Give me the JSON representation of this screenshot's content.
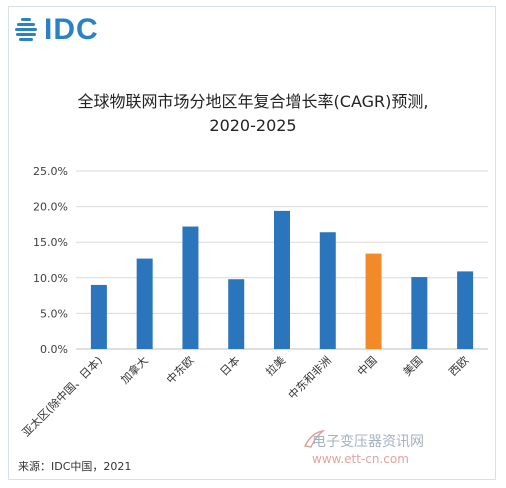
{
  "brand": {
    "logo_text": "IDC",
    "colors": {
      "logo": "#2a82c6",
      "bar": "#2a75bb",
      "highlight": "#f28a2a"
    }
  },
  "footer": {
    "source": "来源：IDC中国，2021"
  },
  "watermark": {
    "site_name": "电子变压器资讯网",
    "url": "www.ett-cn.com"
  },
  "chart_data": {
    "type": "bar",
    "title": "全球物联网市场分地区年复合增长率(CAGR)预测,",
    "subtitle": "2020-2025",
    "xlabel": "",
    "ylabel": "",
    "categories": [
      "亚太区(除中国、日本)",
      "加拿大",
      "中东欧",
      "日本",
      "拉美",
      "中东和非洲",
      "中国",
      "美国",
      "西欧"
    ],
    "values": [
      9.0,
      12.7,
      17.2,
      9.8,
      19.4,
      16.4,
      13.4,
      10.1,
      10.9
    ],
    "value_format": "percent",
    "highlight_category": "中国",
    "yticks": [
      "0.0%",
      "5.0%",
      "10.0%",
      "15.0%",
      "20.0%",
      "25.0%"
    ],
    "ylim": [
      0,
      25
    ],
    "grid": true,
    "legend": "none"
  }
}
